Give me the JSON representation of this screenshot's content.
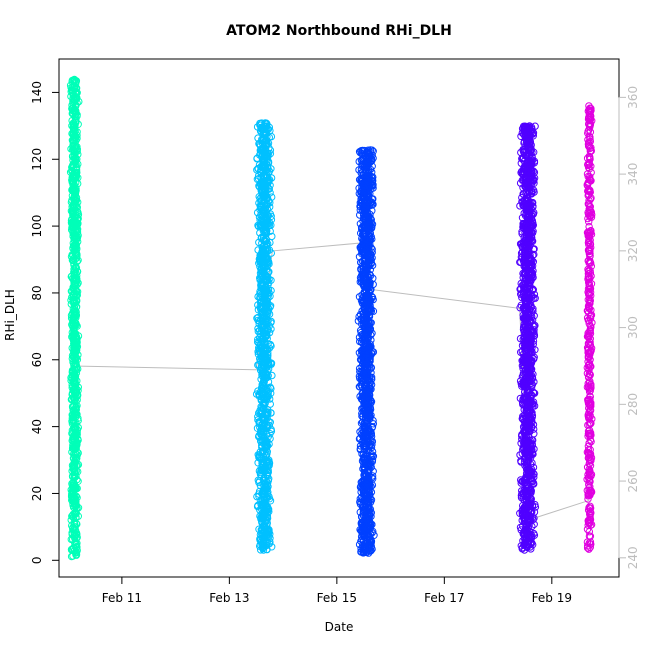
{
  "chart_data": {
    "type": "scatter",
    "title": "ATOM2 Northbound RHi_DLH",
    "xlabel": "Date",
    "ylabel": "RHi_DLH",
    "x_ticks": [
      {
        "day": 11,
        "label": "Feb 11"
      },
      {
        "day": 13,
        "label": "Feb 13"
      },
      {
        "day": 15,
        "label": "Feb 15"
      },
      {
        "day": 17,
        "label": "Feb 17"
      },
      {
        "day": 19,
        "label": "Feb 19"
      }
    ],
    "xlim": [
      "2006-02-09 20:00",
      "2006-02-20 06:00"
    ],
    "ylim": [
      0,
      145
    ],
    "y_ticks": [
      0,
      20,
      40,
      60,
      80,
      100,
      120,
      140
    ],
    "y2_ticks": [
      240,
      260,
      280,
      300,
      320,
      340,
      360
    ],
    "y2_lim": [
      240,
      365
    ],
    "grid": false,
    "series": [
      {
        "x_center": 10.12,
        "x_spread": 0.08,
        "y_min": 1,
        "y_max": 144,
        "color": "#00FFB8",
        "density": 0.0,
        "points": 900
      },
      {
        "x_center": 13.65,
        "x_spread": 0.15,
        "y_min": 3,
        "y_max": 131,
        "color": "#00C0FF",
        "density": 0.0,
        "points": 1100
      },
      {
        "x_center": 15.55,
        "x_spread": 0.15,
        "y_min": 2,
        "y_max": 123,
        "color": "#0040FF",
        "density": 0.0,
        "points": 1300
      },
      {
        "x_center": 18.55,
        "x_spread": 0.15,
        "y_min": 3,
        "y_max": 130,
        "color": "#5000FF",
        "density": 0.0,
        "points": 1300
      },
      {
        "x_center": 19.7,
        "x_spread": 0.05,
        "y_min": 3,
        "y_max": 137,
        "color": "#E000E0",
        "density": 0.0,
        "points": 400
      }
    ],
    "altitude_track": {
      "color": "#bdbdbd",
      "points": [
        [
          10.1,
          355
        ],
        [
          10.1,
          290
        ],
        [
          13.5,
          289
        ],
        [
          13.8,
          320
        ],
        [
          15.4,
          322
        ],
        [
          15.6,
          310
        ],
        [
          18.4,
          305
        ],
        [
          18.6,
          250
        ],
        [
          19.7,
          255
        ]
      ]
    }
  }
}
